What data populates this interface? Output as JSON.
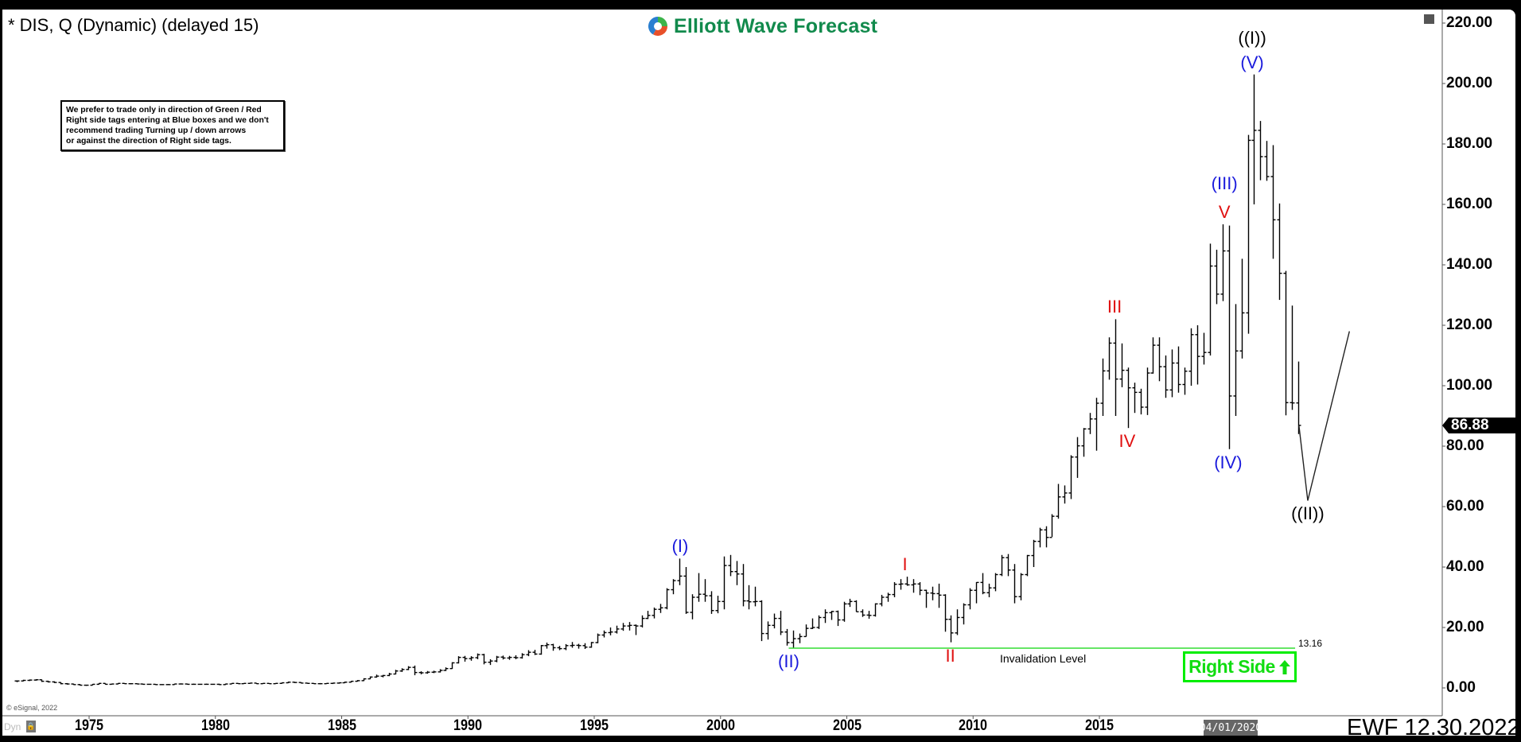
{
  "header": {
    "title": "* DIS, Q (Dynamic) (delayed 15)",
    "logo_text": "Elliott Wave Forecast",
    "note_lines": [
      "We prefer to trade only in direction of Green / Red",
      "Right side tags entering at Blue boxes and we don't",
      "recommend trading Turning up / down arrows",
      "or against the direction of Right side tags."
    ]
  },
  "footer": {
    "copyright": "© eSignal, 2022",
    "dyn_label": "Dyn",
    "crosshair_date": "04/01/2020",
    "stamp": "EWF 12.30.2022"
  },
  "chart_data": {
    "type": "ohlc-bar",
    "symbol": "DIS",
    "interval": "quarterly",
    "first_bar": "1972Q1",
    "ylim": [
      -5,
      225
    ],
    "y_ticks": [
      "220.00",
      "200.00",
      "180.00",
      "160.00",
      "140.00",
      "120.00",
      "100.00",
      "80.00",
      "60.00",
      "40.00",
      "20.00",
      "0.00"
    ],
    "y_tick_values": [
      220,
      200,
      180,
      160,
      140,
      120,
      100,
      80,
      60,
      40,
      20,
      0
    ],
    "x_ticks": [
      "1975",
      "1980",
      "1985",
      "1990",
      "1995",
      "2000",
      "2005",
      "2010",
      "2015"
    ],
    "x_tick_values": [
      1975,
      1980,
      1985,
      1990,
      1995,
      2000,
      2005,
      2010,
      2015
    ],
    "last_price": "86.88",
    "colors": {
      "bars": "#000000",
      "invalidation": "#33dd33",
      "right_side": "#00ee00",
      "wave_blue": "#1a1adc",
      "wave_red": "#e01010",
      "wave_black": "#000000"
    },
    "bars_hlc": [
      [
        2.5,
        1.9,
        2.3
      ],
      [
        2.7,
        2.2,
        2.5
      ],
      [
        2.8,
        2.3,
        2.6
      ],
      [
        2.9,
        2.4,
        2.7
      ],
      [
        2.8,
        2.0,
        2.2
      ],
      [
        2.4,
        1.8,
        2.0
      ],
      [
        2.2,
        1.6,
        1.8
      ],
      [
        1.9,
        1.2,
        1.4
      ],
      [
        1.6,
        1.1,
        1.3
      ],
      [
        1.4,
        1.0,
        1.1
      ],
      [
        1.3,
        0.8,
        0.9
      ],
      [
        1.0,
        0.7,
        0.9
      ],
      [
        1.3,
        0.9,
        1.2
      ],
      [
        1.6,
        1.1,
        1.5
      ],
      [
        1.5,
        1.1,
        1.2
      ],
      [
        1.4,
        1.1,
        1.3
      ],
      [
        1.6,
        1.2,
        1.5
      ],
      [
        1.6,
        1.3,
        1.4
      ],
      [
        1.5,
        1.2,
        1.4
      ],
      [
        1.5,
        1.2,
        1.3
      ],
      [
        1.4,
        1.1,
        1.2
      ],
      [
        1.3,
        1.1,
        1.2
      ],
      [
        1.3,
        1.0,
        1.1
      ],
      [
        1.2,
        1.0,
        1.1
      ],
      [
        1.3,
        1.0,
        1.1
      ],
      [
        1.4,
        1.1,
        1.3
      ],
      [
        1.5,
        1.2,
        1.3
      ],
      [
        1.4,
        1.1,
        1.2
      ],
      [
        1.4,
        1.1,
        1.2
      ],
      [
        1.3,
        1.1,
        1.2
      ],
      [
        1.4,
        1.1,
        1.2
      ],
      [
        1.3,
        1.1,
        1.2
      ],
      [
        1.4,
        1.0,
        1.1
      ],
      [
        1.4,
        1.0,
        1.3
      ],
      [
        1.6,
        1.3,
        1.5
      ],
      [
        1.6,
        1.3,
        1.4
      ],
      [
        1.6,
        1.3,
        1.5
      ],
      [
        1.7,
        1.4,
        1.6
      ],
      [
        1.6,
        1.3,
        1.4
      ],
      [
        1.6,
        1.3,
        1.5
      ],
      [
        1.5,
        1.3,
        1.4
      ],
      [
        1.6,
        1.3,
        1.5
      ],
      [
        1.8,
        1.4,
        1.7
      ],
      [
        2.1,
        1.6,
        1.9
      ],
      [
        2.0,
        1.6,
        1.8
      ],
      [
        1.9,
        1.5,
        1.6
      ],
      [
        1.7,
        1.4,
        1.5
      ],
      [
        1.6,
        1.3,
        1.4
      ],
      [
        1.6,
        1.2,
        1.4
      ],
      [
        1.6,
        1.3,
        1.5
      ],
      [
        1.7,
        1.3,
        1.6
      ],
      [
        1.8,
        1.4,
        1.7
      ],
      [
        2.1,
        1.6,
        1.9
      ],
      [
        2.3,
        1.8,
        2.2
      ],
      [
        2.6,
        2.1,
        2.4
      ],
      [
        3.2,
        2.3,
        3.0
      ],
      [
        3.8,
        2.9,
        3.6
      ],
      [
        4.4,
        3.4,
        3.9
      ],
      [
        4.3,
        3.5,
        4.1
      ],
      [
        5.0,
        3.9,
        4.6
      ],
      [
        6.0,
        4.5,
        5.6
      ],
      [
        6.5,
        5.3,
        6.1
      ],
      [
        7.2,
        5.9,
        6.8
      ],
      [
        7.4,
        4.2,
        5.1
      ],
      [
        5.5,
        4.5,
        5.0
      ],
      [
        5.6,
        4.7,
        5.2
      ],
      [
        5.7,
        4.9,
        5.3
      ],
      [
        6.2,
        5.1,
        5.8
      ],
      [
        6.8,
        5.6,
        6.4
      ],
      [
        8.5,
        6.3,
        8.3
      ],
      [
        10.5,
        8.1,
        10.1
      ],
      [
        10.6,
        8.7,
        9.7
      ],
      [
        10.5,
        9.0,
        10.0
      ],
      [
        11.4,
        9.5,
        11.0
      ],
      [
        11.3,
        7.8,
        8.5
      ],
      [
        9.5,
        7.6,
        8.9
      ],
      [
        10.6,
        8.5,
        10.2
      ],
      [
        10.7,
        9.4,
        9.9
      ],
      [
        10.6,
        9.3,
        10.1
      ],
      [
        10.8,
        9.5,
        10.0
      ],
      [
        11.5,
        9.7,
        11.0
      ],
      [
        12.5,
        10.5,
        11.8
      ],
      [
        12.6,
        10.9,
        11.2
      ],
      [
        14.2,
        11.0,
        14.0
      ],
      [
        15.0,
        13.0,
        14.3
      ],
      [
        14.6,
        12.3,
        13.3
      ],
      [
        13.9,
        12.5,
        13.0
      ],
      [
        14.5,
        12.5,
        14.0
      ],
      [
        15.2,
        13.3,
        14.1
      ],
      [
        14.6,
        13.0,
        14.0
      ],
      [
        14.8,
        12.9,
        13.5
      ],
      [
        15.2,
        13.3,
        15.0
      ],
      [
        18.0,
        14.8,
        17.5
      ],
      [
        19.0,
        16.7,
        18.3
      ],
      [
        20.0,
        17.4,
        18.5
      ],
      [
        20.6,
        18.0,
        19.5
      ],
      [
        21.5,
        18.9,
        20.5
      ],
      [
        21.8,
        19.0,
        20.7
      ],
      [
        21.0,
        17.5,
        20.5
      ],
      [
        24.0,
        20.0,
        23.0
      ],
      [
        25.5,
        22.8,
        24.0
      ],
      [
        26.6,
        23.0,
        26.0
      ],
      [
        27.8,
        24.8,
        26.5
      ],
      [
        33.0,
        26.0,
        32.5
      ],
      [
        36.0,
        31.0,
        35.5
      ],
      [
        42.8,
        34.0,
        37.0
      ],
      [
        40.0,
        24.5,
        25.0
      ],
      [
        31.0,
        22.7,
        30.0
      ],
      [
        38.0,
        28.5,
        31.0
      ],
      [
        36.0,
        28.5,
        30.5
      ],
      [
        32.0,
        24.5,
        25.6
      ],
      [
        30.5,
        24.7,
        28.6
      ],
      [
        43.5,
        26.0,
        40.5
      ],
      [
        44.0,
        37.0,
        38.5
      ],
      [
        42.0,
        34.0,
        37.7
      ],
      [
        41.0,
        27.0,
        28.8
      ],
      [
        34.0,
        26.0,
        28.5
      ],
      [
        33.5,
        27.0,
        28.6
      ],
      [
        29.0,
        15.5,
        18.0
      ],
      [
        22.0,
        16.0,
        20.7
      ],
      [
        24.6,
        19.7,
        23.0
      ],
      [
        25.5,
        17.5,
        18.5
      ],
      [
        19.5,
        14.0,
        15.0
      ],
      [
        19.0,
        13.2,
        16.3
      ],
      [
        18.0,
        14.8,
        17.0
      ],
      [
        21.0,
        17.0,
        19.7
      ],
      [
        23.0,
        19.5,
        20.0
      ],
      [
        24.0,
        19.5,
        23.3
      ],
      [
        26.0,
        21.5,
        24.9
      ],
      [
        25.5,
        22.5,
        25.3
      ],
      [
        25.6,
        20.5,
        22.5
      ],
      [
        28.5,
        21.9,
        27.8
      ],
      [
        29.5,
        26.8,
        28.6
      ],
      [
        29.0,
        25.2,
        25.2
      ],
      [
        26.0,
        23.5,
        24.1
      ],
      [
        25.5,
        22.9,
        24.0
      ],
      [
        28.0,
        23.6,
        27.8
      ],
      [
        30.8,
        27.0,
        30.0
      ],
      [
        31.5,
        28.5,
        30.9
      ],
      [
        35.0,
        30.0,
        34.3
      ],
      [
        36.0,
        32.5,
        34.4
      ],
      [
        36.8,
        33.8,
        34.1
      ],
      [
        36.0,
        31.5,
        34.4
      ],
      [
        35.0,
        30.7,
        32.3
      ],
      [
        32.5,
        26.5,
        31.4
      ],
      [
        33.5,
        29.0,
        31.2
      ],
      [
        34.5,
        26.5,
        30.7
      ],
      [
        31.0,
        18.6,
        22.7
      ],
      [
        24.0,
        15.1,
        18.2
      ],
      [
        26.0,
        17.5,
        23.3
      ],
      [
        28.0,
        21.0,
        27.5
      ],
      [
        33.0,
        26.0,
        32.3
      ],
      [
        35.0,
        28.0,
        34.9
      ],
      [
        38.0,
        31.0,
        31.5
      ],
      [
        34.5,
        30.0,
        33.1
      ],
      [
        38.0,
        32.0,
        37.5
      ],
      [
        44.0,
        37.0,
        43.1
      ],
      [
        44.3,
        37.0,
        39.0
      ],
      [
        41.0,
        28.0,
        30.2
      ],
      [
        38.0,
        29.0,
        37.5
      ],
      [
        44.0,
        37.0,
        43.8
      ],
      [
        49.0,
        40.0,
        48.5
      ],
      [
        53.0,
        46.5,
        52.3
      ],
      [
        53.5,
        46.5,
        49.8
      ],
      [
        57.5,
        50.0,
        56.8
      ],
      [
        67.5,
        56.0,
        63.2
      ],
      [
        67.0,
        61.0,
        64.5
      ],
      [
        77.0,
        62.5,
        76.4
      ],
      [
        83.0,
        69.5,
        80.1
      ],
      [
        86.0,
        76.5,
        85.7
      ],
      [
        91.0,
        84.0,
        89.0
      ],
      [
        96.0,
        78.5,
        94.2
      ],
      [
        109.0,
        90.0,
        104.9
      ],
      [
        116.0,
        102.0,
        114.1
      ],
      [
        122.0,
        90.0,
        102.2
      ],
      [
        114.0,
        99.5,
        105.1
      ],
      [
        106.0,
        86.0,
        99.3
      ],
      [
        101.0,
        91.0,
        97.8
      ],
      [
        99.0,
        90.5,
        92.9
      ],
      [
        106.0,
        90.3,
        104.2
      ],
      [
        116.0,
        104.0,
        113.4
      ],
      [
        116.0,
        101.5,
        106.3
      ],
      [
        110.0,
        96.0,
        98.6
      ],
      [
        112.0,
        96.2,
        107.5
      ],
      [
        113.0,
        97.7,
        100.4
      ],
      [
        106.0,
        97.0,
        104.8
      ],
      [
        119.0,
        100.0,
        116.9
      ],
      [
        120.0,
        100.4,
        109.7
      ],
      [
        117.5,
        107.0,
        111.0
      ],
      [
        147.0,
        110.0,
        139.6
      ],
      [
        145.0,
        127.0,
        130.3
      ],
      [
        153.4,
        128.0,
        144.6
      ],
      [
        153.0,
        79.0,
        96.6
      ],
      [
        127.0,
        90.0,
        111.5
      ],
      [
        142.0,
        109.0,
        124.1
      ],
      [
        183.0,
        117.2,
        181.2
      ],
      [
        203.0,
        160.0,
        184.5
      ],
      [
        187.6,
        168.0,
        175.8
      ],
      [
        181.0,
        167.8,
        169.2
      ],
      [
        179.6,
        142.0,
        154.9
      ],
      [
        160.3,
        128.4,
        137.2
      ],
      [
        138.0,
        90.2,
        94.4
      ],
      [
        126.5,
        92.0,
        94.3
      ],
      [
        108.0,
        84.0,
        86.88
      ]
    ],
    "projection": [
      [
        2022.9,
        86.88
      ],
      [
        2023.25,
        62
      ],
      [
        2024.9,
        118
      ]
    ],
    "invalidation": {
      "label": "Invalidation Level",
      "value_label": "13.16",
      "value": 13.16,
      "from_year": 2002.7,
      "to_year": 2022.75
    },
    "right_side_tag": {
      "label": "Right Side",
      "direction": "up"
    },
    "wave_labels": [
      {
        "text": "(I)",
        "year": 1998.4,
        "price": 42.8,
        "pos": "above",
        "color": "blue"
      },
      {
        "text": "(II)",
        "year": 2002.7,
        "price": 13.2,
        "pos": "below",
        "color": "blue"
      },
      {
        "text": "I",
        "year": 2007.3,
        "price": 36.8,
        "pos": "above",
        "color": "red"
      },
      {
        "text": "II",
        "year": 2009.1,
        "price": 15.1,
        "pos": "below",
        "color": "red"
      },
      {
        "text": "III",
        "year": 2015.6,
        "price": 122,
        "pos": "above",
        "color": "red"
      },
      {
        "text": "IV",
        "year": 2016.1,
        "price": 86,
        "pos": "below",
        "color": "red"
      },
      {
        "text": "V",
        "year": 2019.95,
        "price": 153.4,
        "pos": "above",
        "color": "red"
      },
      {
        "text": "(III)",
        "year": 2019.95,
        "price": 163,
        "pos": "above",
        "color": "blue"
      },
      {
        "text": "(IV)",
        "year": 2020.1,
        "price": 79,
        "pos": "below",
        "color": "blue"
      },
      {
        "text": "(V)",
        "year": 2021.05,
        "price": 203,
        "pos": "above",
        "color": "blue"
      },
      {
        "text": "((I))",
        "year": 2021.05,
        "price": 211,
        "pos": "above",
        "color": "black"
      },
      {
        "text": "((II))",
        "year": 2023.25,
        "price": 62,
        "pos": "below",
        "color": "black"
      }
    ]
  }
}
